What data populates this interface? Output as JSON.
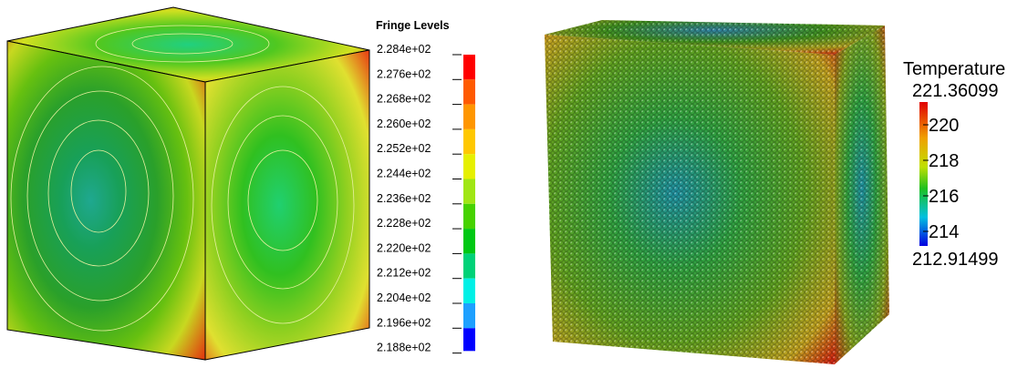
{
  "left_panel": {
    "legend": {
      "title": "Fringe Levels",
      "labels": [
        "2.284e+02",
        "2.276e+02",
        "2.268e+02",
        "2.260e+02",
        "2.252e+02",
        "2.244e+02",
        "2.236e+02",
        "2.228e+02",
        "2.220e+02",
        "2.212e+02",
        "2.204e+02",
        "2.196e+02",
        "2.188e+02"
      ]
    }
  },
  "right_panel": {
    "legend": {
      "title": "Temperature",
      "max_label": "221.36099",
      "tick_labels": [
        "220",
        "218",
        "216",
        "214"
      ],
      "min_label": "212.91499"
    }
  }
}
